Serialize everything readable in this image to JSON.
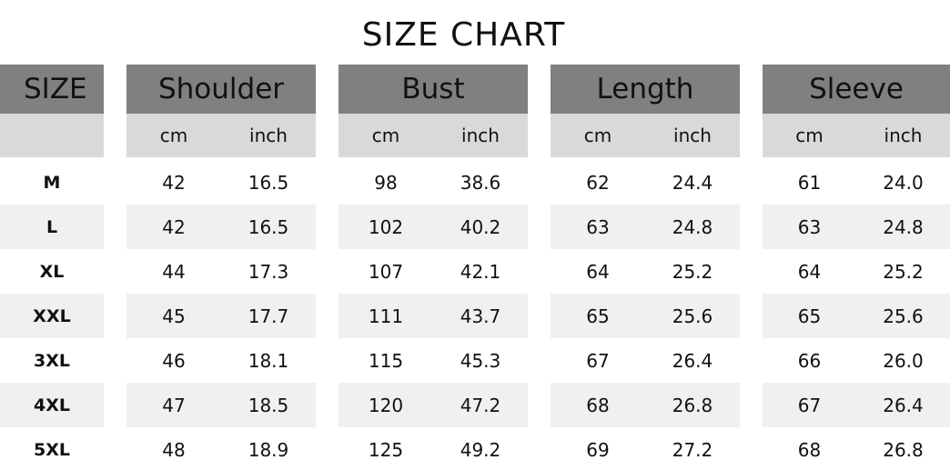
{
  "title": "SIZE CHART",
  "size_header": "SIZE",
  "unit_labels": {
    "cm": "cm",
    "inch": "inch"
  },
  "sizes": [
    "M",
    "L",
    "XL",
    "XXL",
    "3XL",
    "4XL",
    "5XL"
  ],
  "measurements": [
    {
      "name": "Shoulder",
      "cm": [
        "42",
        "42",
        "44",
        "45",
        "46",
        "47",
        "48"
      ],
      "inch": [
        "16.5",
        "16.5",
        "17.3",
        "17.7",
        "18.1",
        "18.5",
        "18.9"
      ]
    },
    {
      "name": "Bust",
      "cm": [
        "98",
        "102",
        "107",
        "111",
        "115",
        "120",
        "125"
      ],
      "inch": [
        "38.6",
        "40.2",
        "42.1",
        "43.7",
        "45.3",
        "47.2",
        "49.2"
      ]
    },
    {
      "name": "Length",
      "cm": [
        "62",
        "63",
        "64",
        "65",
        "67",
        "68",
        "69"
      ],
      "inch": [
        "24.4",
        "24.8",
        "25.2",
        "25.6",
        "26.4",
        "26.8",
        "27.2"
      ]
    },
    {
      "name": "Sleeve",
      "cm": [
        "61",
        "63",
        "64",
        "65",
        "66",
        "67",
        "68"
      ],
      "inch": [
        "24.0",
        "24.8",
        "25.2",
        "25.6",
        "26.0",
        "26.4",
        "26.8"
      ]
    }
  ],
  "colors": {
    "header": "#808080",
    "subheader": "#d9d9d9",
    "stripe": "#f0f0f0"
  }
}
